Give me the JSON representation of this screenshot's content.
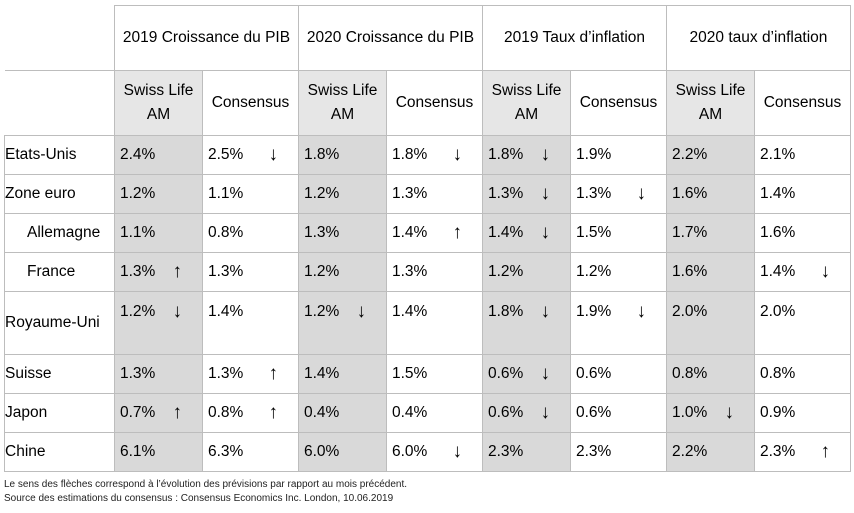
{
  "headers": {
    "groups": [
      "2019 Croissance du PIB",
      "2020 Croissance du PIB",
      "2019 Taux d’inflation",
      "2020 taux d’inflation"
    ],
    "sub": [
      "Swiss Life AM",
      "Consensus"
    ]
  },
  "rows": [
    {
      "country": "Etats-Unis",
      "vals": [
        "2.4%",
        "2.5%",
        "1.8%",
        "1.8%",
        "1.8%",
        "1.9%",
        "2.2%",
        "2.1%"
      ],
      "arrows": [
        "",
        "down",
        "",
        "down",
        "down",
        "",
        "",
        ""
      ]
    },
    {
      "country": "Zone euro",
      "vals": [
        "1.2%",
        "1.1%",
        "1.2%",
        "1.3%",
        "1.3%",
        "1.3%",
        "1.6%",
        "1.4%"
      ],
      "arrows": [
        "",
        "",
        "",
        "",
        "down",
        "down",
        "",
        ""
      ]
    },
    {
      "country": "Allemagne",
      "vals": [
        "1.1%",
        "0.8%",
        "1.3%",
        "1.4%",
        "1.4%",
        "1.5%",
        "1.7%",
        "1.6%"
      ],
      "arrows": [
        "",
        "",
        "",
        "up",
        "down",
        "",
        "",
        ""
      ]
    },
    {
      "country": "France",
      "vals": [
        "1.3%",
        "1.3%",
        "1.2%",
        "1.3%",
        "1.2%",
        "1.2%",
        "1.6%",
        "1.4%"
      ],
      "arrows": [
        "up",
        "",
        "",
        "",
        "",
        "",
        "",
        "down"
      ]
    },
    {
      "country": "Royaume-Uni",
      "vals": [
        "1.2%",
        "1.4%",
        "1.2%",
        "1.4%",
        "1.8%",
        "1.9%",
        "2.0%",
        "2.0%"
      ],
      "arrows": [
        "down",
        "",
        "down",
        "",
        "down",
        "down",
        "",
        ""
      ]
    },
    {
      "country": "Suisse",
      "vals": [
        "1.3%",
        "1.3%",
        "1.4%",
        "1.5%",
        "0.6%",
        "0.6%",
        "0.8%",
        "0.8%"
      ],
      "arrows": [
        "",
        "up",
        "",
        "",
        "down",
        "",
        "",
        ""
      ]
    },
    {
      "country": "Japon",
      "vals": [
        "0.7%",
        "0.8%",
        "0.4%",
        "0.4%",
        "0.6%",
        "0.6%",
        "1.0%",
        "0.9%"
      ],
      "arrows": [
        "up",
        "up",
        "",
        "",
        "down",
        "",
        "down",
        ""
      ]
    },
    {
      "country": "Chine",
      "vals": [
        "6.1%",
        "6.3%",
        "6.0%",
        "6.0%",
        "2.3%",
        "2.3%",
        "2.2%",
        "2.3%"
      ],
      "arrows": [
        "",
        "",
        "",
        "down",
        "",
        "",
        "",
        "up"
      ]
    }
  ],
  "footnotes": [
    "Le sens des flèches correspond à l’évolution des prévisions par rapport au mois précédent.",
    "Source des estimations du consensus : Consensus Economics Inc. London, 10.06.2019"
  ]
}
